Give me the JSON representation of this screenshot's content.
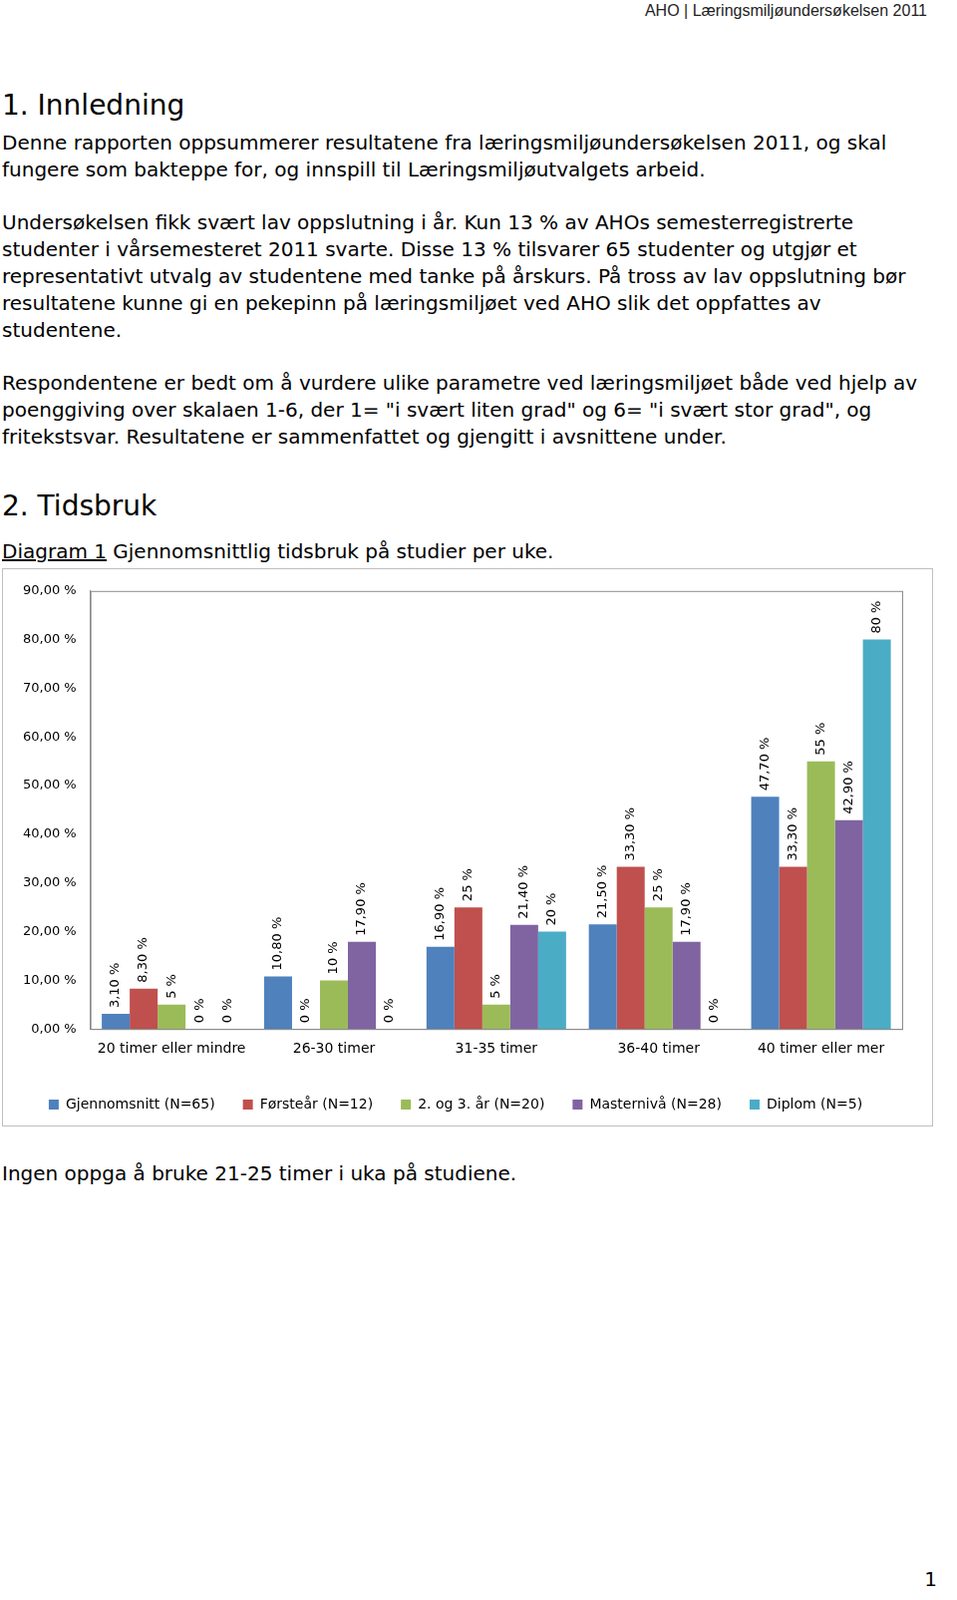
{
  "header": {
    "title": "AHO | Læringsmiljøundersøkelsen 2011"
  },
  "sections": [
    {
      "heading": "1. Innledning",
      "paragraphs": [
        "Denne rapporten oppsummerer resultatene fra læringsmiljøundersøkelsen 2011, og skal fungere som bakteppe for, og innspill til Læringsmiljøutvalgets arbeid.",
        "Undersøkelsen fikk svært lav oppslutning i år. Kun 13 % av AHOs semesterregistrerte studenter i vårsemesteret 2011 svarte. Disse 13 % tilsvarer 65 studenter og utgjør et representativt utvalg av studentene med tanke på årskurs. På tross av lav oppslutning bør resultatene kunne gi en pekepinn på læringsmiljøet ved AHO slik det oppfattes av studentene.",
        "Respondentene er bedt om å vurdere ulike parametre ved læringsmiljøet både ved hjelp av poenggiving over skalaen 1-6, der 1= \"i svært liten grad\" og 6= \"i svært stor grad\", og fritekstsvar. Resultatene er sammenfattet og gjengitt i avsnittene under."
      ]
    },
    {
      "heading": "2. Tidsbruk",
      "caption": {
        "label": "Diagram 1",
        "text": "Gjennomsnittlig tidsbruk på studier per uke."
      },
      "note": "Ingen oppga å bruke 21-25 timer i uka på studiene."
    }
  ],
  "chart_data": {
    "type": "bar",
    "categories": [
      "20 timer eller mindre",
      "26-30 timer",
      "31-35 timer",
      "36-40 timer",
      "40 timer eller mer"
    ],
    "series": [
      {
        "name": "Gjennomsnitt (N=65)",
        "color": "#4f81bd",
        "values": [
          3.1,
          10.8,
          16.9,
          21.5,
          47.7
        ],
        "value_labels": [
          "3,10 %",
          "10,80 %",
          "16,90 %",
          "21,50 %",
          "47,70 %"
        ]
      },
      {
        "name": "Førsteår (N=12)",
        "color": "#c0504d",
        "values": [
          8.3,
          0,
          25,
          33.3,
          33.3
        ],
        "value_labels": [
          "8,30 %",
          "0 %",
          "25 %",
          "33,30 %",
          "33,30 %"
        ]
      },
      {
        "name": "2. og 3. år (N=20)",
        "color": "#9bbb59",
        "values": [
          5,
          10,
          5,
          25,
          55
        ],
        "value_labels": [
          "5 %",
          "10 %",
          "5 %",
          "25 %",
          "55 %"
        ]
      },
      {
        "name": "Masternivå (N=28)",
        "color": "#8064a2",
        "values": [
          0,
          17.9,
          21.4,
          17.9,
          42.9
        ],
        "value_labels": [
          "0 %",
          "17,90 %",
          "21,40 %",
          "17,90 %",
          "42,90 %"
        ]
      },
      {
        "name": "Diplom (N=5)",
        "color": "#4bacc6",
        "values": [
          0,
          0,
          20,
          0,
          80
        ],
        "value_labels": [
          "0 %",
          "0 %",
          "20 %",
          "0 %",
          "80 %"
        ]
      }
    ],
    "ylim": [
      0,
      90
    ],
    "yticks": [
      {
        "value": 0,
        "label": "0,00 %"
      },
      {
        "value": 10,
        "label": "10,00 %"
      },
      {
        "value": 20,
        "label": "20,00 %"
      },
      {
        "value": 30,
        "label": "30,00 %"
      },
      {
        "value": 40,
        "label": "40,00 %"
      },
      {
        "value": 50,
        "label": "50,00 %"
      },
      {
        "value": 60,
        "label": "60,00 %"
      },
      {
        "value": 70,
        "label": "70,00 %"
      },
      {
        "value": 80,
        "label": "80,00 %"
      },
      {
        "value": 90,
        "label": "90,00 %"
      }
    ],
    "grid": false,
    "legend": "bottom",
    "data_labels": true
  },
  "page_number": "1"
}
